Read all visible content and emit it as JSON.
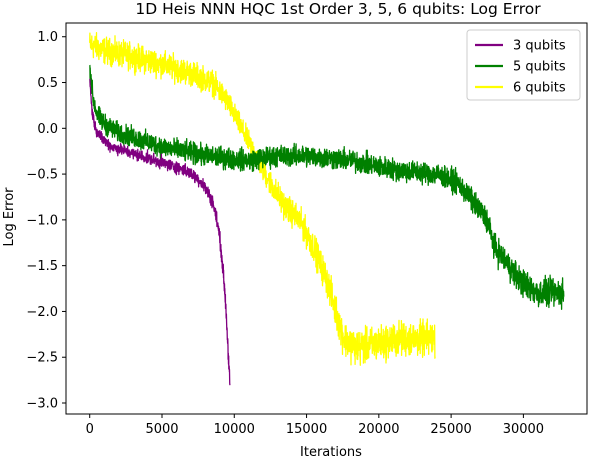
{
  "chart_data": {
    "type": "line",
    "title": "1D Heis NNN HQC 1st Order 3, 5, 6 qubits: Log Error",
    "xlabel": "Iterations",
    "ylabel": "Log Error",
    "xlim": [
      -1640,
      34400
    ],
    "ylim": [
      -3.12,
      1.15
    ],
    "xticks": [
      0,
      5000,
      10000,
      15000,
      20000,
      25000,
      30000
    ],
    "xtick_labels": [
      "0",
      "5000",
      "10000",
      "15000",
      "20000",
      "25000",
      "30000"
    ],
    "yticks": [
      1.0,
      0.5,
      0.0,
      -0.5,
      -1.0,
      -1.5,
      -2.0,
      -2.5,
      -3.0
    ],
    "ytick_labels": [
      "1.0",
      "0.5",
      "0.0",
      "−0.5",
      "−1.0",
      "−1.5",
      "−2.0",
      "−2.5",
      "−3.0"
    ],
    "grid": false,
    "legend_position": "top-right",
    "draw_order": [
      "6 qubits",
      "5 qubits",
      "3 qubits"
    ],
    "series": [
      {
        "name": "3 qubits",
        "color": "#800080",
        "noise": 0.05,
        "x": [
          0,
          150,
          400,
          800,
          1500,
          2500,
          3500,
          4500,
          5500,
          6500,
          7000,
          7500,
          8000,
          8500,
          8800,
          9000,
          9200,
          9400,
          9500,
          9600,
          9700
        ],
        "y": [
          0.55,
          0.2,
          0.0,
          -0.1,
          -0.2,
          -0.25,
          -0.3,
          -0.35,
          -0.4,
          -0.45,
          -0.5,
          -0.55,
          -0.65,
          -0.8,
          -1.0,
          -1.2,
          -1.5,
          -1.9,
          -2.2,
          -2.5,
          -2.8
        ]
      },
      {
        "name": "5 qubits",
        "color": "#008000",
        "noise": 0.09,
        "x": [
          0,
          100,
          200,
          500,
          1000,
          2000,
          3000,
          5000,
          8000,
          11000,
          13000,
          15000,
          18000,
          21000,
          24000,
          25500,
          26500,
          27500,
          28000,
          29000,
          30000,
          31000,
          32000,
          32800
        ],
        "y": [
          0.65,
          0.55,
          0.35,
          0.15,
          0.05,
          -0.05,
          -0.1,
          -0.2,
          -0.3,
          -0.35,
          -0.3,
          -0.3,
          -0.35,
          -0.45,
          -0.5,
          -0.6,
          -0.8,
          -1.0,
          -1.3,
          -1.5,
          -1.7,
          -1.8,
          -1.8,
          -1.8
        ]
      },
      {
        "name": "6 qubits",
        "color": "#ffff00",
        "noise": 0.1,
        "x": [
          0,
          1000,
          3000,
          5000,
          7000,
          8500,
          9500,
          10500,
          11500,
          12500,
          13500,
          14500,
          15500,
          16500,
          17200,
          17600,
          18500,
          20000,
          21500,
          23000,
          23900
        ],
        "y": [
          0.92,
          0.85,
          0.78,
          0.7,
          0.6,
          0.5,
          0.3,
          0.0,
          -0.3,
          -0.6,
          -0.85,
          -1.0,
          -1.3,
          -1.7,
          -2.1,
          -2.3,
          -2.4,
          -2.35,
          -2.3,
          -2.3,
          -2.3
        ]
      }
    ]
  }
}
